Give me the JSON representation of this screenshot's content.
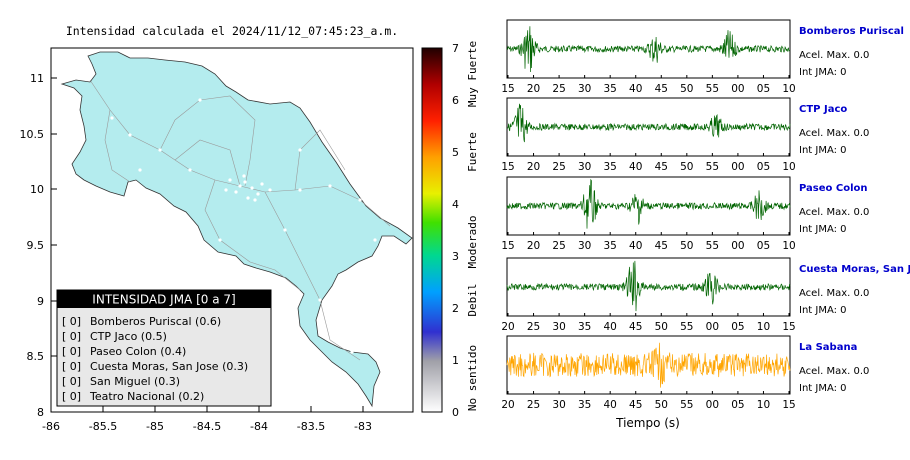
{
  "map": {
    "title": "Intensidad calculada el 2024/11/12_07:45:23_a.m.",
    "x_ticks": [
      "-86",
      "-85.5",
      "-85",
      "-84.5",
      "-84",
      "-83.5",
      "-83"
    ],
    "y_ticks": [
      "11",
      "10.5",
      "10",
      "9.5",
      "9",
      "8.5",
      "8"
    ],
    "x_range": [
      -86,
      -82.5
    ],
    "y_range": [
      8,
      11.3
    ],
    "land_color": "#b4ecee",
    "legend": {
      "title": "INTENSIDAD JMA [0 a 7]",
      "items": [
        {
          "level": "[ 0]",
          "station": "Bomberos Puriscal (0.6)"
        },
        {
          "level": "[ 0]",
          "station": "CTP Jaco (0.5)"
        },
        {
          "level": "[ 0]",
          "station": "Paseo Colon (0.4)"
        },
        {
          "level": "[ 0]",
          "station": "Cuesta Moras, San Jose (0.3)"
        },
        {
          "level": "[ 0]",
          "station": "San Miguel (0.3)"
        },
        {
          "level": "[ 0]",
          "station": "Teatro Nacional (0.2)"
        }
      ]
    }
  },
  "colorbar": {
    "ticks": [
      "7",
      "6",
      "5",
      "4",
      "3",
      "2",
      "1",
      "0"
    ],
    "range": [
      0,
      7
    ],
    "class_labels": [
      "Muy Fuerte",
      "Fuerte",
      "Moderado",
      "Debil",
      "No sentido"
    ]
  },
  "chart_data": [
    {
      "type": "line",
      "title": "Bomberos Puriscal",
      "color": "#006400",
      "x_tick_labels": [
        "15",
        "20",
        "25",
        "30",
        "35",
        "40",
        "45",
        "50",
        "55",
        "00",
        "05",
        "10"
      ],
      "annotations": [
        "Acel. Max. 0.0",
        "Int JMA: 0"
      ],
      "bursts": [
        {
          "at": 20,
          "amp": 1.0
        },
        {
          "at": 49,
          "amp": 0.5
        },
        {
          "at": 66,
          "amp": 0.6
        }
      ]
    },
    {
      "type": "line",
      "title": "CTP Jaco",
      "color": "#006400",
      "x_tick_labels": [
        "15",
        "20",
        "25",
        "30",
        "35",
        "40",
        "45",
        "50",
        "55",
        "00",
        "05",
        "10"
      ],
      "annotations": [
        "Acel. Max. 0.0",
        "Int JMA: 0"
      ],
      "bursts": [
        {
          "at": 18,
          "amp": 0.9
        },
        {
          "at": 63,
          "amp": 0.4
        }
      ]
    },
    {
      "type": "line",
      "title": "Paseo Colon",
      "color": "#006400",
      "x_tick_labels": [
        "15",
        "20",
        "25",
        "30",
        "35",
        "40",
        "45",
        "50",
        "55",
        "00",
        "05",
        "10"
      ],
      "annotations": [
        "Acel. Max. 0.0",
        "Int JMA: 0"
      ],
      "bursts": [
        {
          "at": 34,
          "amp": 1.0
        },
        {
          "at": 45,
          "amp": 0.6
        },
        {
          "at": 73,
          "amp": 0.5
        }
      ]
    },
    {
      "type": "line",
      "title": "Cuesta Moras, San Jose",
      "color": "#006400",
      "x_tick_labels": [
        "20",
        "25",
        "30",
        "35",
        "40",
        "45",
        "50",
        "55",
        "00",
        "05",
        "10",
        "15"
      ],
      "annotations": [
        "Acel. Max. 0.0",
        "Int JMA: 0"
      ],
      "bursts": [
        {
          "at": 44,
          "amp": 1.0
        },
        {
          "at": 62,
          "amp": 0.6
        }
      ]
    },
    {
      "type": "line",
      "title": "La Sabana",
      "color": "#ffa500",
      "xlabel": "Tiempo (s)",
      "x_tick_labels": [
        "20",
        "25",
        "30",
        "35",
        "40",
        "45",
        "50",
        "55",
        "00",
        "05",
        "10",
        "15"
      ],
      "annotations": [
        "Acel. Max. 0.0",
        "Int JMA: 0"
      ],
      "bursts": [
        {
          "at": 50,
          "amp": 0.7
        }
      ]
    }
  ]
}
